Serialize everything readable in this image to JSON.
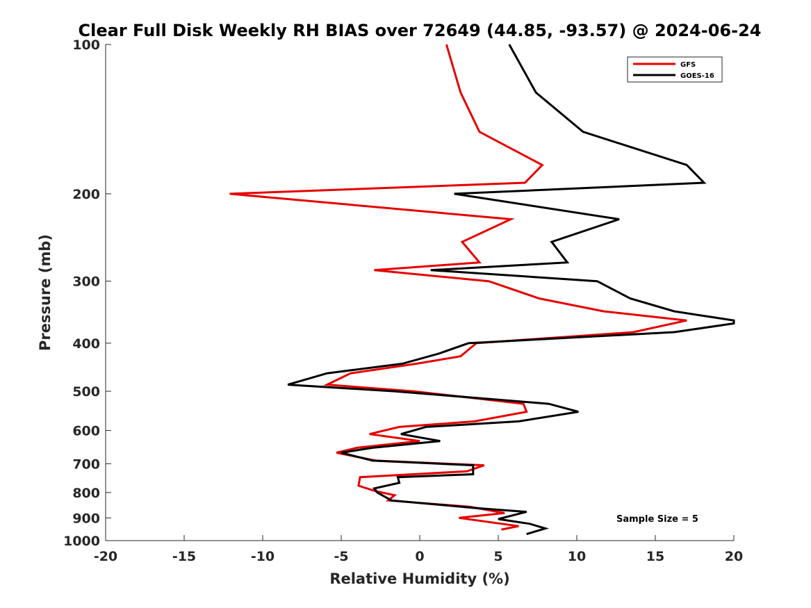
{
  "chart_data": {
    "type": "line",
    "title": "Clear Full Disk Weekly RH BIAS over 72649 (44.85, -93.57) @ 2024-06-24",
    "xlabel": "Relative Humidity (%)",
    "ylabel": "Pressure (mb)",
    "xlim": [
      -20,
      20
    ],
    "ylim": [
      100,
      1000
    ],
    "y_scale": "log",
    "y_reversed": true,
    "x_ticks": [
      "-20",
      "-15",
      "-10",
      "-5",
      "0",
      "5",
      "10",
      "15",
      "20"
    ],
    "y_ticks": [
      "100",
      "200",
      "300",
      "400",
      "500",
      "600",
      "700",
      "800",
      "900",
      "1000"
    ],
    "grid": false,
    "legend_position": "top-right",
    "annotation": "Sample Size = 5",
    "series": [
      {
        "name": "GFS",
        "color": "#e60000",
        "points": [
          {
            "x": 1.7,
            "y": 100
          },
          {
            "x": 2.6,
            "y": 125
          },
          {
            "x": 3.8,
            "y": 150
          },
          {
            "x": 7.8,
            "y": 175
          },
          {
            "x": 6.7,
            "y": 190
          },
          {
            "x": -12.1,
            "y": 200
          },
          {
            "x": 5.8,
            "y": 225
          },
          {
            "x": 2.7,
            "y": 250
          },
          {
            "x": 3.8,
            "y": 275
          },
          {
            "x": -2.9,
            "y": 285
          },
          {
            "x": 4.4,
            "y": 300
          },
          {
            "x": 7.6,
            "y": 325
          },
          {
            "x": 11.7,
            "y": 345
          },
          {
            "x": 17.0,
            "y": 360
          },
          {
            "x": 13.6,
            "y": 380
          },
          {
            "x": 3.6,
            "y": 400
          },
          {
            "x": 2.6,
            "y": 425
          },
          {
            "x": -0.2,
            "y": 440
          },
          {
            "x": -4.4,
            "y": 460
          },
          {
            "x": -5.9,
            "y": 485
          },
          {
            "x": -0.4,
            "y": 500
          },
          {
            "x": 6.6,
            "y": 530
          },
          {
            "x": 6.8,
            "y": 550
          },
          {
            "x": 3.5,
            "y": 575
          },
          {
            "x": -1.3,
            "y": 590
          },
          {
            "x": -3.2,
            "y": 610
          },
          {
            "x": 0.0,
            "y": 630
          },
          {
            "x": -4.0,
            "y": 650
          },
          {
            "x": -5.3,
            "y": 665
          },
          {
            "x": -2.8,
            "y": 690
          },
          {
            "x": 4.1,
            "y": 705
          },
          {
            "x": 3.0,
            "y": 725
          },
          {
            "x": -3.8,
            "y": 745
          },
          {
            "x": -3.9,
            "y": 775
          },
          {
            "x": -2.8,
            "y": 795
          },
          {
            "x": -1.6,
            "y": 810
          },
          {
            "x": -2.0,
            "y": 830
          },
          {
            "x": 3.2,
            "y": 855
          },
          {
            "x": 5.4,
            "y": 880
          },
          {
            "x": 2.5,
            "y": 900
          },
          {
            "x": 6.3,
            "y": 935
          },
          {
            "x": 5.2,
            "y": 950
          }
        ]
      },
      {
        "name": "GOES-16",
        "color": "#000000",
        "points": [
          {
            "x": 5.7,
            "y": 100
          },
          {
            "x": 7.4,
            "y": 125
          },
          {
            "x": 10.4,
            "y": 150
          },
          {
            "x": 17.0,
            "y": 175
          },
          {
            "x": 18.1,
            "y": 190
          },
          {
            "x": 2.2,
            "y": 200
          },
          {
            "x": 12.7,
            "y": 225
          },
          {
            "x": 8.4,
            "y": 250
          },
          {
            "x": 9.4,
            "y": 275
          },
          {
            "x": 0.7,
            "y": 285
          },
          {
            "x": 11.3,
            "y": 300
          },
          {
            "x": 13.4,
            "y": 325
          },
          {
            "x": 16.2,
            "y": 345
          },
          {
            "x": 20.0,
            "y": 360
          },
          {
            "x": 20.0,
            "y": 365
          },
          {
            "x": 16.2,
            "y": 380
          },
          {
            "x": 3.1,
            "y": 400
          },
          {
            "x": 1.2,
            "y": 420
          },
          {
            "x": -1.1,
            "y": 440
          },
          {
            "x": -5.9,
            "y": 460
          },
          {
            "x": -8.4,
            "y": 485
          },
          {
            "x": -1.6,
            "y": 500
          },
          {
            "x": 8.2,
            "y": 530
          },
          {
            "x": 10.1,
            "y": 550
          },
          {
            "x": 6.3,
            "y": 575
          },
          {
            "x": 0.4,
            "y": 590
          },
          {
            "x": -1.2,
            "y": 610
          },
          {
            "x": 1.3,
            "y": 630
          },
          {
            "x": -3.0,
            "y": 650
          },
          {
            "x": -5.0,
            "y": 665
          },
          {
            "x": -3.0,
            "y": 690
          },
          {
            "x": 3.4,
            "y": 705
          },
          {
            "x": 3.4,
            "y": 735
          },
          {
            "x": -1.4,
            "y": 745
          },
          {
            "x": -1.3,
            "y": 765
          },
          {
            "x": -2.9,
            "y": 785
          },
          {
            "x": -2.7,
            "y": 800
          },
          {
            "x": -1.8,
            "y": 830
          },
          {
            "x": 3.6,
            "y": 860
          },
          {
            "x": 6.8,
            "y": 875
          },
          {
            "x": 5.0,
            "y": 905
          },
          {
            "x": 7.0,
            "y": 925
          },
          {
            "x": 8.0,
            "y": 945
          },
          {
            "x": 6.8,
            "y": 970
          }
        ]
      }
    ]
  }
}
